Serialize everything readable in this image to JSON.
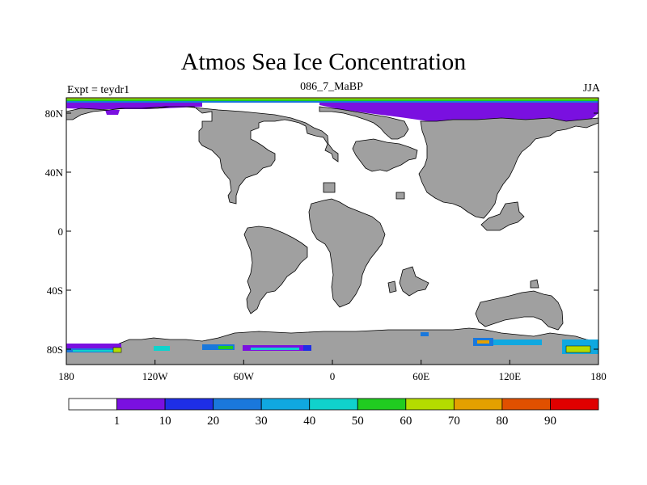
{
  "title": "Atmos Sea Ice Concentration",
  "subtitle_left": "Expt = teydr1",
  "subtitle_center": "086_7_MaBP",
  "subtitle_right": "JJA",
  "y_ticks": [
    "80N",
    "40N",
    "0",
    "40S",
    "80S"
  ],
  "x_ticks": [
    "180",
    "120W",
    "60W",
    "0",
    "60E",
    "120E",
    "180"
  ],
  "colorbar": {
    "labels": [
      "1",
      "10",
      "20",
      "30",
      "40",
      "50",
      "60",
      "70",
      "80",
      "90"
    ],
    "colors": [
      "#ffffff",
      "#7a10e0",
      "#1e2ee6",
      "#1a78dc",
      "#10a8e0",
      "#10d2cc",
      "#20cc20",
      "#b4dc00",
      "#e4a000",
      "#e05000",
      "#e00000"
    ]
  },
  "colors": {
    "land": "#a0a0a0",
    "ocean": "#ffffff"
  }
}
